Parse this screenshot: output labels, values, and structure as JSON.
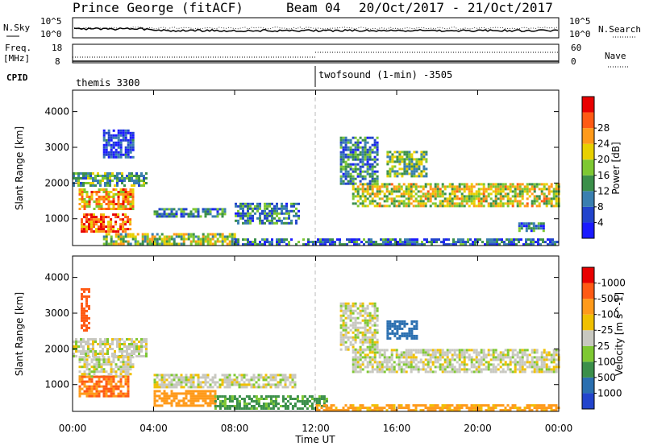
{
  "header": {
    "site": "Prince George (fitACF)",
    "beam": "Beam 04",
    "date_range": "20/Oct/2017 - 21/Oct/2017"
  },
  "noise_panel": {
    "left_label": "N.Sky",
    "left_tick_top": "10^5",
    "left_tick_bottom": "10^0",
    "right_tick_top": "10^5",
    "right_tick_bottom": "10^0",
    "right_label": "N.Search"
  },
  "freq_panel": {
    "left_label_line1": "Freq.",
    "left_label_line2": "[MHz]",
    "left_tick_top": "18",
    "left_tick_bottom": "8",
    "right_tick_top": "60",
    "right_tick_bottom": "0",
    "right_label": "Nave"
  },
  "cpid": {
    "label": "CPID",
    "segments": [
      {
        "name": "themis 3300",
        "start_hour": 0
      },
      {
        "name": "twofsound (1-min) -3505",
        "start_hour": 12
      }
    ]
  },
  "x_axis": {
    "ticks": [
      "00:00",
      "04:00",
      "08:00",
      "12:00",
      "16:00",
      "20:00",
      "00:00"
    ],
    "label": "Time UT"
  },
  "chart_data": [
    {
      "type": "heatmap",
      "title": "",
      "ylabel": "Slant Range [km]",
      "xlabel": "Time UT",
      "xlim_hours": [
        0,
        24
      ],
      "ylim": [
        250,
        4600
      ],
      "yticks": [
        1000,
        2000,
        3000,
        4000
      ],
      "colorbar": {
        "label": "Power [dB]",
        "ticks": [
          "4",
          "8",
          "12",
          "16",
          "20",
          "24",
          "28"
        ],
        "colors": [
          "#1a1aff",
          "#2244cc",
          "#3a7fb0",
          "#3b8f4a",
          "#7ec832",
          "#e8d000",
          "#ff9a1a",
          "#ff5a14",
          "#e80000"
        ]
      },
      "regions": [
        {
          "t0": 0.0,
          "t1": 3.6,
          "r0": 1900,
          "r1": 2300,
          "level": 14
        },
        {
          "t0": 0.3,
          "t1": 3.0,
          "r0": 1250,
          "r1": 1850,
          "level": 24
        },
        {
          "t0": 0.4,
          "t1": 2.8,
          "r0": 650,
          "r1": 1150,
          "level": 28
        },
        {
          "t0": 1.5,
          "t1": 8.0,
          "r0": 300,
          "r1": 600,
          "level": 18
        },
        {
          "t0": 4.0,
          "t1": 7.5,
          "r0": 1050,
          "r1": 1300,
          "level": 12
        },
        {
          "t0": 8.0,
          "t1": 11.2,
          "r0": 850,
          "r1": 1450,
          "level": 12
        },
        {
          "t0": 1.5,
          "t1": 3.0,
          "r0": 2700,
          "r1": 3500,
          "level": 6
        },
        {
          "t0": 8.0,
          "t1": 24.0,
          "r0": 280,
          "r1": 450,
          "level": 10
        },
        {
          "t0": 13.8,
          "t1": 24.0,
          "r0": 1350,
          "r1": 2000,
          "level": 20
        },
        {
          "t0": 13.2,
          "t1": 15.0,
          "r0": 2000,
          "r1": 3300,
          "level": 12
        },
        {
          "t0": 15.5,
          "t1": 17.5,
          "r0": 2200,
          "r1": 2900,
          "level": 16
        },
        {
          "t0": 22.0,
          "t1": 23.2,
          "r0": 650,
          "r1": 900,
          "level": 10
        }
      ]
    },
    {
      "type": "heatmap",
      "title": "",
      "ylabel": "Slant Range [km]",
      "xlabel": "Time UT",
      "xlim_hours": [
        0,
        24
      ],
      "ylim": [
        250,
        4600
      ],
      "yticks": [
        1000,
        2000,
        3000,
        4000
      ],
      "colorbar": {
        "label": "Velocity [m s^-1]",
        "ticks": [
          "1000",
          "500",
          "100",
          "25",
          "-25",
          "-100",
          "-500",
          "-1000"
        ],
        "colors": [
          "#2244cc",
          "#2a6fb0",
          "#3b8f4a",
          "#7ec832",
          "#c8c8c0",
          "#f0c000",
          "#ff9a1a",
          "#ff5a14",
          "#e80000"
        ]
      },
      "regions": [
        {
          "t0": 0.0,
          "t1": 3.6,
          "r0": 1800,
          "r1": 2300,
          "vel": 0
        },
        {
          "t0": 0.3,
          "t1": 3.0,
          "r0": 1250,
          "r1": 1800,
          "vel": 0
        },
        {
          "t0": 0.3,
          "t1": 2.8,
          "r0": 650,
          "r1": 1250,
          "vel": -300
        },
        {
          "t0": 4.0,
          "t1": 7.0,
          "r0": 400,
          "r1": 850,
          "vel": -250
        },
        {
          "t0": 4.0,
          "t1": 11.0,
          "r0": 900,
          "r1": 1300,
          "vel": 0
        },
        {
          "t0": 7.0,
          "t1": 12.5,
          "r0": 300,
          "r1": 700,
          "vel": 80
        },
        {
          "t0": 12.0,
          "t1": 24.0,
          "r0": 280,
          "r1": 450,
          "vel": -80
        },
        {
          "t0": 13.8,
          "t1": 24.0,
          "r0": 1350,
          "r1": 2000,
          "vel": 0
        },
        {
          "t0": 13.2,
          "t1": 15.0,
          "r0": 2000,
          "r1": 3300,
          "vel": 0
        },
        {
          "t0": 15.5,
          "t1": 17.0,
          "r0": 2300,
          "r1": 2800,
          "vel": 600
        },
        {
          "t0": 0.4,
          "t1": 0.8,
          "r0": 2500,
          "r1": 3700,
          "vel": -600
        }
      ]
    }
  ]
}
